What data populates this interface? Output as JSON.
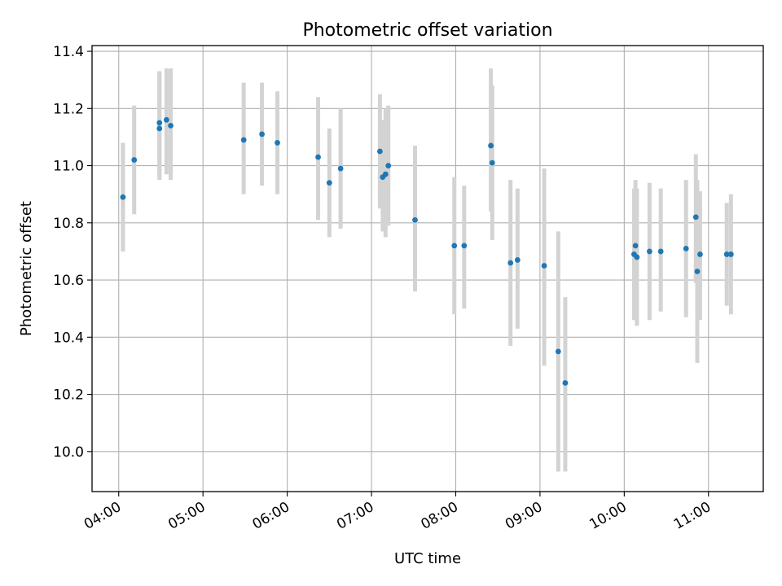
{
  "chart_data": {
    "type": "scatter",
    "title": "Photometric offset variation",
    "xlabel": "UTC time",
    "ylabel": "Photometric offset",
    "x_ticks": [
      "04:00",
      "05:00",
      "06:00",
      "07:00",
      "08:00",
      "09:00",
      "10:00",
      "11:00"
    ],
    "y_ticks": [
      "10.0",
      "10.2",
      "10.4",
      "10.6",
      "10.8",
      "11.0",
      "11.2",
      "11.4"
    ],
    "xlim": [
      "03:41",
      "11:39"
    ],
    "ylim": [
      9.86,
      11.42
    ],
    "grid": true,
    "colors": {
      "point": "#1f77b4",
      "errorbar": "#d3d3d3",
      "grid": "#b0b0b0"
    },
    "points": [
      {
        "time": "04:03",
        "y": 10.89,
        "ylow": 10.7,
        "yhigh": 11.08
      },
      {
        "time": "04:11",
        "y": 11.02,
        "ylow": 10.83,
        "yhigh": 11.21
      },
      {
        "time": "04:29",
        "y": 11.13,
        "ylow": 10.95,
        "yhigh": 11.33
      },
      {
        "time": "04:29",
        "y": 11.15,
        "ylow": 10.96,
        "yhigh": 11.33
      },
      {
        "time": "04:34",
        "y": 11.16,
        "ylow": 10.97,
        "yhigh": 11.34
      },
      {
        "time": "04:37",
        "y": 11.14,
        "ylow": 10.95,
        "yhigh": 11.34
      },
      {
        "time": "05:29",
        "y": 11.09,
        "ylow": 10.9,
        "yhigh": 11.29
      },
      {
        "time": "05:42",
        "y": 11.11,
        "ylow": 10.93,
        "yhigh": 11.29
      },
      {
        "time": "05:53",
        "y": 11.08,
        "ylow": 10.9,
        "yhigh": 11.26
      },
      {
        "time": "06:22",
        "y": 11.03,
        "ylow": 10.81,
        "yhigh": 11.24
      },
      {
        "time": "06:30",
        "y": 10.94,
        "ylow": 10.75,
        "yhigh": 11.13
      },
      {
        "time": "06:38",
        "y": 10.99,
        "ylow": 10.78,
        "yhigh": 11.2
      },
      {
        "time": "07:06",
        "y": 11.05,
        "ylow": 10.85,
        "yhigh": 11.25
      },
      {
        "time": "07:08",
        "y": 10.96,
        "ylow": 10.77,
        "yhigh": 11.16
      },
      {
        "time": "07:10",
        "y": 10.97,
        "ylow": 10.75,
        "yhigh": 11.2
      },
      {
        "time": "07:12",
        "y": 11.0,
        "ylow": 10.79,
        "yhigh": 11.21
      },
      {
        "time": "07:31",
        "y": 10.81,
        "ylow": 10.56,
        "yhigh": 11.07
      },
      {
        "time": "07:59",
        "y": 10.72,
        "ylow": 10.48,
        "yhigh": 10.96
      },
      {
        "time": "08:06",
        "y": 10.72,
        "ylow": 10.5,
        "yhigh": 10.93
      },
      {
        "time": "08:25",
        "y": 11.07,
        "ylow": 10.84,
        "yhigh": 11.34
      },
      {
        "time": "08:26",
        "y": 11.01,
        "ylow": 10.74,
        "yhigh": 11.28
      },
      {
        "time": "08:39",
        "y": 10.66,
        "ylow": 10.37,
        "yhigh": 10.95
      },
      {
        "time": "08:44",
        "y": 10.67,
        "ylow": 10.43,
        "yhigh": 10.92
      },
      {
        "time": "09:03",
        "y": 10.65,
        "ylow": 10.3,
        "yhigh": 10.99
      },
      {
        "time": "09:13",
        "y": 10.35,
        "ylow": 9.93,
        "yhigh": 10.77
      },
      {
        "time": "09:18",
        "y": 10.24,
        "ylow": 9.93,
        "yhigh": 10.54
      },
      {
        "time": "10:07",
        "y": 10.69,
        "ylow": 10.46,
        "yhigh": 10.92
      },
      {
        "time": "10:08",
        "y": 10.72,
        "ylow": 10.49,
        "yhigh": 10.95
      },
      {
        "time": "10:09",
        "y": 10.68,
        "ylow": 10.44,
        "yhigh": 10.92
      },
      {
        "time": "10:18",
        "y": 10.7,
        "ylow": 10.46,
        "yhigh": 10.94
      },
      {
        "time": "10:26",
        "y": 10.7,
        "ylow": 10.49,
        "yhigh": 10.92
      },
      {
        "time": "10:44",
        "y": 10.71,
        "ylow": 10.47,
        "yhigh": 10.95
      },
      {
        "time": "10:51",
        "y": 10.82,
        "ylow": 10.59,
        "yhigh": 11.04
      },
      {
        "time": "10:52",
        "y": 10.63,
        "ylow": 10.31,
        "yhigh": 10.95
      },
      {
        "time": "10:54",
        "y": 10.69,
        "ylow": 10.46,
        "yhigh": 10.91
      },
      {
        "time": "11:13",
        "y": 10.69,
        "ylow": 10.51,
        "yhigh": 10.87
      },
      {
        "time": "11:16",
        "y": 10.69,
        "ylow": 10.48,
        "yhigh": 10.9
      }
    ]
  }
}
